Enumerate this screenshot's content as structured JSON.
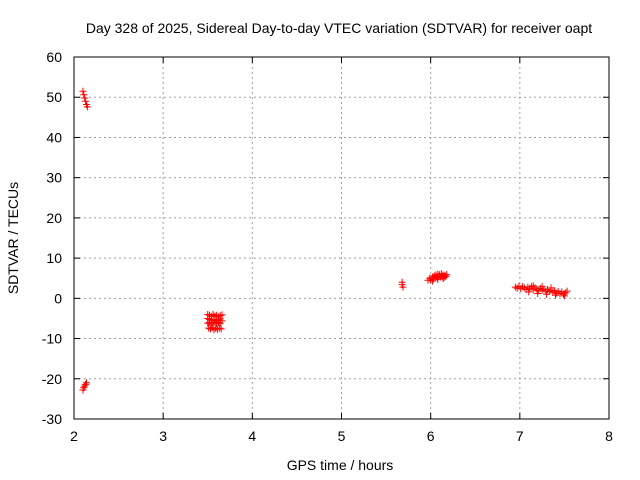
{
  "chart_data": {
    "type": "scatter",
    "title": "Day 328 of 2025, Sidereal Day-to-day VTEC variation (SDTVAR) for receiver oapt",
    "xlabel": "GPS time / hours",
    "ylabel": "SDTVAR / TECUs",
    "xlim": [
      2,
      8
    ],
    "ylim": [
      -30,
      60
    ],
    "xticks": [
      "2",
      "3",
      "4",
      "5",
      "6",
      "7",
      "8"
    ],
    "yticks": [
      "-30",
      "-20",
      "-10",
      "0",
      "10",
      "20",
      "30",
      "40",
      "50",
      "60"
    ],
    "grid": true,
    "marker": "+",
    "color": "#ff0000",
    "points": [
      [
        2.1,
        51.5
      ],
      [
        2.11,
        50.6
      ],
      [
        2.12,
        49.8
      ],
      [
        2.13,
        49.0
      ],
      [
        2.14,
        48.2
      ],
      [
        2.15,
        47.6
      ],
      [
        2.1,
        -22.8
      ],
      [
        2.11,
        -22.2
      ],
      [
        2.12,
        -21.8
      ],
      [
        2.13,
        -21.4
      ],
      [
        2.14,
        -21.0
      ],
      [
        3.5,
        -4.0
      ],
      [
        3.52,
        -4.2
      ],
      [
        3.54,
        -4.5
      ],
      [
        3.56,
        -4.0
      ],
      [
        3.58,
        -4.4
      ],
      [
        3.6,
        -4.2
      ],
      [
        3.62,
        -4.6
      ],
      [
        3.64,
        -4.3
      ],
      [
        3.66,
        -4.1
      ],
      [
        3.5,
        -5.0
      ],
      [
        3.52,
        -5.3
      ],
      [
        3.54,
        -5.6
      ],
      [
        3.56,
        -5.2
      ],
      [
        3.58,
        -5.5
      ],
      [
        3.6,
        -5.8
      ],
      [
        3.62,
        -5.4
      ],
      [
        3.64,
        -5.1
      ],
      [
        3.66,
        -5.6
      ],
      [
        3.5,
        -6.2
      ],
      [
        3.52,
        -6.0
      ],
      [
        3.54,
        -6.4
      ],
      [
        3.56,
        -6.1
      ],
      [
        3.58,
        -5.9
      ],
      [
        3.6,
        -6.3
      ],
      [
        3.62,
        -6.0
      ],
      [
        3.64,
        -6.2
      ],
      [
        3.51,
        -7.4
      ],
      [
        3.53,
        -7.6
      ],
      [
        3.55,
        -7.3
      ],
      [
        3.57,
        -7.8
      ],
      [
        3.59,
        -7.5
      ],
      [
        3.61,
        -7.7
      ],
      [
        3.63,
        -7.4
      ],
      [
        3.65,
        -7.6
      ],
      [
        5.68,
        4.0
      ],
      [
        5.68,
        3.4
      ],
      [
        5.69,
        2.8
      ],
      [
        5.97,
        4.5
      ],
      [
        5.99,
        5.0
      ],
      [
        6.0,
        4.6
      ],
      [
        6.02,
        5.3
      ],
      [
        6.03,
        4.8
      ],
      [
        6.04,
        5.6
      ],
      [
        6.05,
        5.1
      ],
      [
        6.06,
        5.8
      ],
      [
        6.07,
        5.2
      ],
      [
        6.08,
        6.0
      ],
      [
        6.09,
        5.4
      ],
      [
        6.1,
        5.9
      ],
      [
        6.11,
        5.3
      ],
      [
        6.12,
        6.1
      ],
      [
        6.13,
        5.5
      ],
      [
        6.14,
        5.8
      ],
      [
        6.15,
        5.2
      ],
      [
        6.16,
        5.7
      ],
      [
        6.17,
        5.4
      ],
      [
        6.18,
        5.9
      ],
      [
        6.02,
        4.3
      ],
      [
        6.08,
        4.7
      ],
      [
        6.14,
        4.9
      ],
      [
        6.95,
        2.8
      ],
      [
        6.97,
        2.5
      ],
      [
        6.99,
        3.0
      ],
      [
        7.01,
        2.4
      ],
      [
        7.03,
        2.9
      ],
      [
        7.05,
        2.6
      ],
      [
        7.07,
        2.2
      ],
      [
        7.09,
        2.8
      ],
      [
        7.11,
        2.4
      ],
      [
        7.13,
        2.9
      ],
      [
        7.15,
        2.1
      ],
      [
        7.17,
        2.6
      ],
      [
        7.19,
        2.3
      ],
      [
        7.21,
        1.9
      ],
      [
        7.23,
        2.5
      ],
      [
        7.25,
        2.0
      ],
      [
        7.27,
        2.3
      ],
      [
        7.29,
        1.8
      ],
      [
        7.31,
        2.2
      ],
      [
        7.33,
        1.7
      ],
      [
        7.35,
        2.0
      ],
      [
        7.37,
        1.5
      ],
      [
        7.39,
        1.9
      ],
      [
        7.41,
        1.3
      ],
      [
        7.43,
        1.7
      ],
      [
        7.45,
        1.2
      ],
      [
        7.47,
        1.6
      ],
      [
        7.49,
        1.0
      ],
      [
        7.51,
        1.4
      ],
      [
        7.53,
        1.8
      ],
      [
        7.1,
        1.6
      ],
      [
        7.2,
        1.2
      ],
      [
        7.3,
        1.0
      ],
      [
        7.4,
        0.8
      ],
      [
        7.5,
        0.6
      ],
      [
        7.15,
        3.1
      ],
      [
        7.25,
        2.9
      ],
      [
        7.35,
        2.6
      ]
    ]
  }
}
